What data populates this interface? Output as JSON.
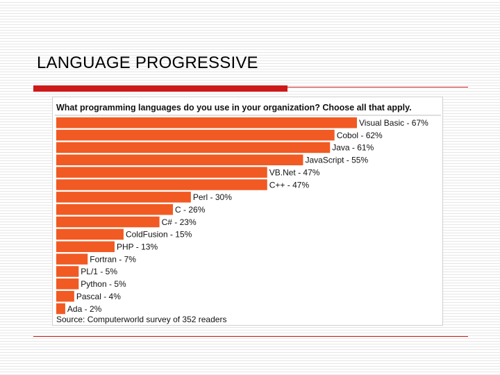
{
  "slide": {
    "title": "LANGUAGE PROGRESSIVE"
  },
  "colors": {
    "accent": "#cc1a1a",
    "bar": "#f15a22",
    "text": "#111111"
  },
  "chart_data": {
    "type": "bar",
    "orientation": "horizontal",
    "title": "What programming languages do you use in your organization? Choose all that apply.",
    "source": "Source: Computerworld survey of 352 readers",
    "unit": "%",
    "xlim": [
      0,
      67
    ],
    "categories": [
      "Visual Basic",
      "Cobol",
      "Java",
      "JavaScript",
      "VB.Net",
      "C++",
      "Perl",
      "C",
      "C#",
      "ColdFusion",
      "PHP",
      "Fortran",
      "PL/1",
      "Python",
      "Pascal",
      "Ada"
    ],
    "values": [
      67,
      62,
      61,
      55,
      47,
      47,
      30,
      26,
      23,
      15,
      13,
      7,
      5,
      5,
      4,
      2
    ],
    "labels": [
      "Visual Basic - 67%",
      "Cobol - 62%",
      "Java - 61%",
      "JavaScript - 55%",
      "VB.Net - 47%",
      "C++ - 47%",
      "Perl - 30%",
      "C - 26%",
      "C# - 23%",
      "ColdFusion - 15%",
      "PHP - 13%",
      "Fortran - 7%",
      "PL/1 - 5%",
      "Python - 5%",
      "Pascal - 4%",
      "Ada - 2%"
    ]
  }
}
